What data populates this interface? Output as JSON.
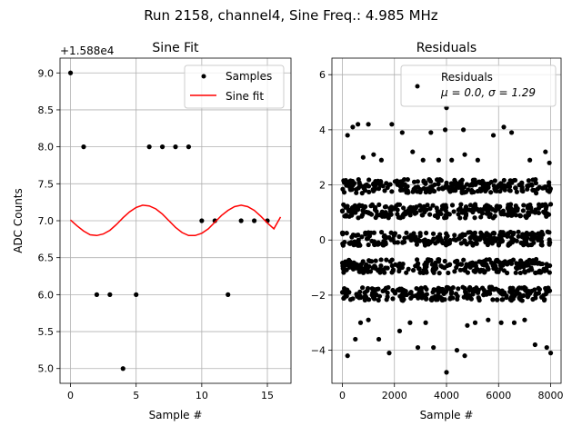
{
  "figure": {
    "suptitle": "Run 2158, channel4, Sine Freq.: 4.985 MHz"
  },
  "colors": {
    "points": "#000000",
    "fit": "#ff0000",
    "grid": "#b0b0b0",
    "axis": "#000000"
  },
  "chart_data": [
    {
      "type": "scatter",
      "title": "Sine Fit",
      "xlabel": "Sample #",
      "ylabel": "ADC Counts",
      "offset_text": "+1.588e4",
      "xlim": [
        -0.8,
        16.8
      ],
      "ylim": [
        4.8,
        9.2
      ],
      "xticks": [
        0,
        5,
        10,
        15
      ],
      "xtick_labels": [
        "0",
        "5",
        "10",
        "15"
      ],
      "yticks": [
        5.0,
        5.5,
        6.0,
        6.5,
        7.0,
        7.5,
        8.0,
        8.5,
        9.0
      ],
      "ytick_labels": [
        "5.0",
        "5.5",
        "6.0",
        "6.5",
        "7.0",
        "7.5",
        "8.0",
        "8.5",
        "9.0"
      ],
      "grid": true,
      "legend": {
        "position": "upper right",
        "entries": [
          "Samples",
          "Sine fit"
        ]
      },
      "series": [
        {
          "name": "Samples",
          "kind": "points",
          "x": [
            0,
            1,
            2,
            3,
            4,
            5,
            6,
            7,
            8,
            9,
            10,
            11,
            12,
            13,
            14,
            15
          ],
          "y": [
            9,
            8,
            6,
            6,
            5,
            6,
            8,
            8,
            8,
            8,
            7,
            7,
            6,
            7,
            7,
            7
          ]
        },
        {
          "name": "Sine fit",
          "kind": "line",
          "x": [
            0,
            0.5,
            1,
            1.5,
            2,
            2.5,
            3,
            3.5,
            4,
            4.5,
            5,
            5.5,
            6,
            6.5,
            7,
            7.5,
            8,
            8.5,
            9,
            9.5,
            10,
            10.5,
            11,
            11.5,
            12,
            12.5,
            13,
            13.5,
            14,
            14.5,
            15,
            15.5,
            16
          ],
          "y": [
            7.01,
            6.93,
            6.86,
            6.81,
            6.8,
            6.82,
            6.87,
            6.95,
            7.04,
            7.12,
            7.18,
            7.21,
            7.2,
            7.16,
            7.09,
            7.0,
            6.91,
            6.84,
            6.8,
            6.8,
            6.83,
            6.89,
            6.98,
            7.07,
            7.14,
            7.19,
            7.21,
            7.19,
            7.14,
            7.06,
            6.97,
            6.89,
            7.05
          ]
        }
      ]
    },
    {
      "type": "scatter",
      "title": "Residuals",
      "xlabel": "Sample #",
      "ylabel": "",
      "xlim": [
        -400,
        8400
      ],
      "ylim": [
        -5.2,
        6.6
      ],
      "xticks": [
        0,
        2000,
        4000,
        6000,
        8000
      ],
      "xtick_labels": [
        "0",
        "2000",
        "4000",
        "6000",
        "8000"
      ],
      "yticks": [
        -4,
        -2,
        0,
        2,
        4,
        6
      ],
      "ytick_labels": [
        "−4",
        "−2",
        "0",
        "2",
        "4",
        "6"
      ],
      "grid": true,
      "n_points": 8000,
      "bands": [
        0.05,
        -0.95,
        1.05,
        -1.95,
        1.95
      ],
      "band_spread": 0.25,
      "legend": {
        "position": "upper right",
        "entries": [
          "Residuals",
          "μ = 0.0, σ = 1.29"
        ]
      },
      "series": [
        {
          "name": "Residuals",
          "kind": "points",
          "x": [
            200,
            400,
            600,
            800,
            1000,
            1200,
            1500,
            1900,
            2300,
            2700,
            3100,
            3400,
            3700,
            3950,
            4000,
            4200,
            4650,
            4700,
            5200,
            5800,
            6200,
            6500,
            7200,
            7800,
            7950,
            200,
            500,
            700,
            1000,
            1400,
            1800,
            2200,
            2600,
            2900,
            3200,
            3500,
            4000,
            4400,
            4700,
            4800,
            5100,
            5600,
            6100,
            6600,
            7000,
            7400,
            7850,
            8000
          ],
          "y": [
            3.8,
            4.1,
            4.2,
            3.0,
            4.2,
            3.1,
            2.9,
            4.2,
            3.9,
            3.2,
            2.9,
            3.9,
            2.9,
            4.0,
            4.8,
            2.9,
            4.0,
            3.1,
            2.9,
            3.8,
            4.1,
            3.9,
            2.9,
            3.2,
            2.8,
            -4.2,
            -3.6,
            -3.0,
            -2.9,
            -3.6,
            -4.1,
            -3.3,
            -3.0,
            -3.9,
            -3.0,
            -3.9,
            -4.8,
            -4.0,
            -4.2,
            -3.1,
            -3.0,
            -2.9,
            -3.0,
            -3.0,
            -2.9,
            -3.8,
            -3.9,
            -4.1
          ]
        }
      ]
    }
  ]
}
